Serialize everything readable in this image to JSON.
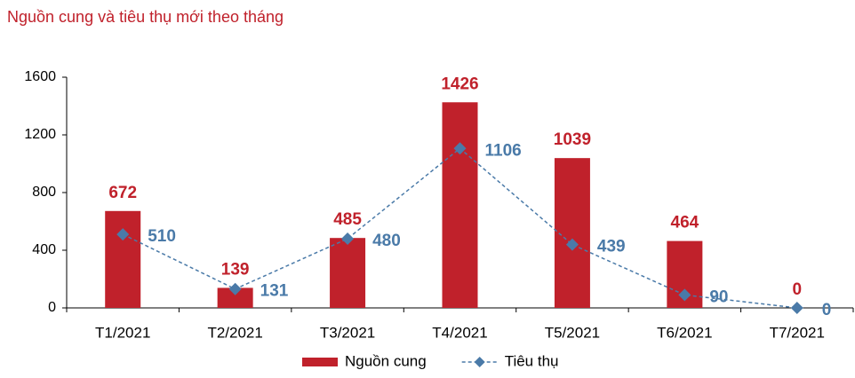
{
  "chart_data": {
    "type": "combo",
    "title": "Nguồn cung và tiêu thụ mới theo tháng",
    "categories": [
      "T1/2021",
      "T2/2021",
      "T3/2021",
      "T4/2021",
      "T5/2021",
      "T6/2021",
      "T7/2021"
    ],
    "series": [
      {
        "name": "Nguồn cung",
        "type": "bar",
        "color": "#c0212b",
        "values": [
          672,
          139,
          485,
          1426,
          1039,
          464,
          0
        ]
      },
      {
        "name": "Tiêu thụ",
        "type": "line",
        "color": "#4a7aa8",
        "values": [
          510,
          131,
          480,
          1106,
          439,
          90,
          0
        ]
      }
    ],
    "ylim": [
      0,
      1600
    ],
    "yticks": [
      0,
      400,
      800,
      1200,
      1600
    ],
    "grid": false,
    "legend": "bottom"
  }
}
